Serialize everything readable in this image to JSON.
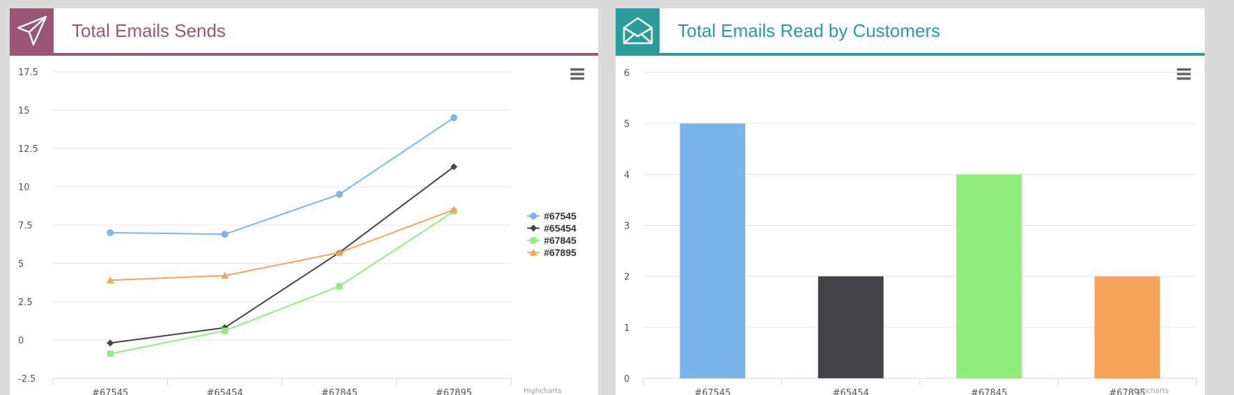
{
  "panels": {
    "sends": {
      "title": "Total Emails Sends",
      "icon": "paper-plane-icon",
      "accent": "#9b5673"
    },
    "read": {
      "title": "Total Emails Read by Customers",
      "icon": "open-envelope-icon",
      "accent": "#2a9d9a"
    }
  },
  "credit": "Highcharts",
  "chart_data": [
    {
      "type": "line",
      "categories": [
        "#67545",
        "#65454",
        "#67845",
        "#67895"
      ],
      "ylim": [
        -2.5,
        17.5
      ],
      "yticks": [
        -2.5,
        0,
        2.5,
        5,
        7.5,
        10,
        12.5,
        15,
        17.5
      ],
      "ytick_labels": [
        "-2.5",
        "0",
        "2.5",
        "5",
        "7.5",
        "10",
        "12.5",
        "15",
        "17.5"
      ],
      "grid": true,
      "legend": "right",
      "series": [
        {
          "name": "#67545",
          "color": "#7cb5ec",
          "marker": "circle",
          "values": [
            7.0,
            6.9,
            9.5,
            14.5
          ]
        },
        {
          "name": "#65454",
          "color": "#434348",
          "marker": "diamond",
          "values": [
            -0.2,
            0.8,
            5.7,
            11.3
          ]
        },
        {
          "name": "#67845",
          "color": "#90ed7d",
          "marker": "square",
          "values": [
            -0.9,
            0.6,
            3.5,
            8.4
          ]
        },
        {
          "name": "#67895",
          "color": "#f7a35c",
          "marker": "triangle",
          "values": [
            3.9,
            4.2,
            5.7,
            8.5
          ]
        }
      ]
    },
    {
      "type": "bar",
      "categories": [
        "#67545",
        "#65454",
        "#67845",
        "#67895"
      ],
      "values": [
        5,
        2,
        4,
        2
      ],
      "colors": [
        "#7cb5ec",
        "#434348",
        "#90ed7d",
        "#f7a35c"
      ],
      "ylim": [
        0,
        6
      ],
      "yticks": [
        0,
        1,
        2,
        3,
        4,
        5,
        6
      ],
      "ytick_labels": [
        "0",
        "1",
        "2",
        "3",
        "4",
        "5",
        "6"
      ],
      "grid": true
    }
  ]
}
